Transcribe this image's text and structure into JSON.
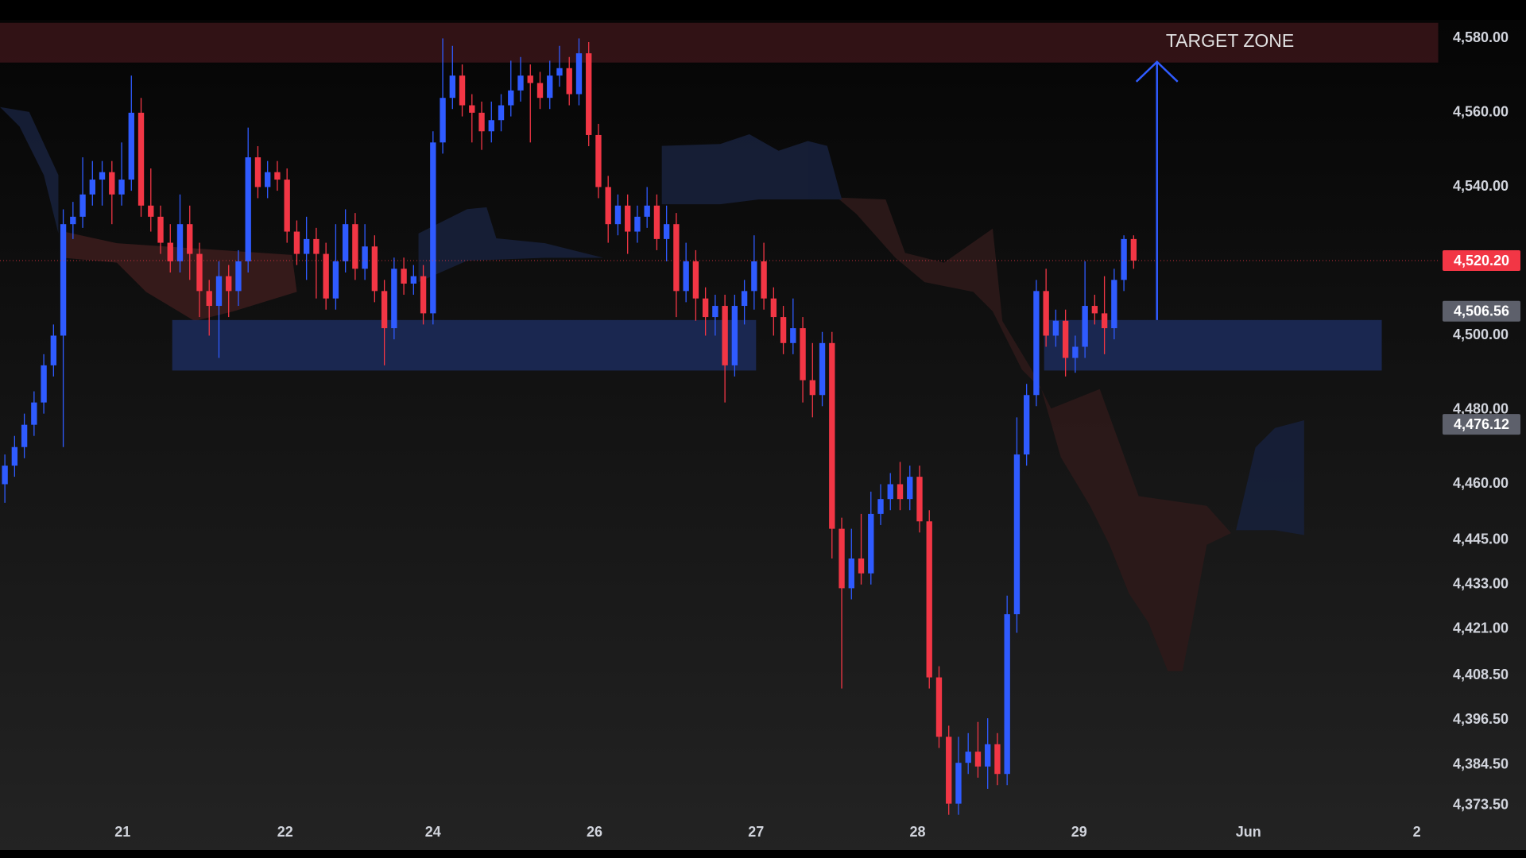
{
  "chart_data": {
    "type": "candlestick",
    "open": [
      4460,
      4465,
      4470,
      4476,
      4482,
      4492,
      4500,
      4530,
      4532,
      4538,
      4542,
      4544,
      4538,
      4542,
      4560,
      4535,
      4532,
      4525,
      4520,
      4530,
      4522,
      4512,
      4508,
      4516,
      4512,
      4520,
      4548,
      4540,
      4544,
      4542,
      4528,
      4522,
      4526,
      4522,
      4510,
      4520,
      4530,
      4518,
      4524,
      4512,
      4502,
      4518,
      4514,
      4516,
      4506,
      4552,
      4564,
      4570,
      4562,
      4560,
      4555,
      4558,
      4562,
      4566,
      4570,
      4568,
      4564,
      4570,
      4572,
      4565,
      4576,
      4554,
      4540,
      4530,
      4535,
      4528,
      4532,
      4535,
      4526,
      4530,
      4512,
      4520,
      4510,
      4505,
      4508,
      4492,
      4508,
      4512,
      4520,
      4510,
      4505,
      4498,
      4502,
      4488,
      4484,
      4498,
      4448,
      4432,
      4440,
      4436,
      4452,
      4456,
      4460,
      4456,
      4462,
      4450,
      4408,
      4392,
      4374,
      4385,
      4388,
      4384,
      4390,
      4382,
      4425,
      4468,
      4484,
      4512,
      4500,
      4504,
      4494,
      4497,
      4508,
      4506,
      4502,
      4515,
      4526
    ],
    "high": [
      4468,
      4473,
      4479,
      4485,
      4495,
      4503,
      4534,
      4536,
      4548,
      4547,
      4547,
      4547,
      4552,
      4570,
      4564,
      4545,
      4535,
      4530,
      4538,
      4535,
      4525,
      4515,
      4520,
      4519,
      4523,
      4556,
      4551,
      4547,
      4547,
      4545,
      4531,
      4532,
      4529,
      4525,
      4530,
      4534,
      4533,
      4530,
      4527,
      4515,
      4521,
      4521,
      4519,
      4519,
      4555,
      4580,
      4578,
      4573,
      4565,
      4563,
      4563,
      4565,
      4574,
      4575,
      4573,
      4571,
      4574,
      4578,
      4575,
      4580,
      4579,
      4557,
      4543,
      4538,
      4538,
      4535,
      4540,
      4538,
      4535,
      4533,
      4525,
      4523,
      4513,
      4511,
      4511,
      4511,
      4515,
      4527,
      4525,
      4513,
      4508,
      4510,
      4505,
      4498,
      4501,
      4501,
      4451,
      4448,
      4452,
      4458,
      4460,
      4463,
      4466,
      4465,
      4465,
      4453,
      4411,
      4395,
      4392,
      4393,
      4396,
      4397,
      4393,
      4430,
      4478,
      4487,
      4515,
      4518,
      4507,
      4507,
      4500,
      4520,
      4511,
      4516,
      4518,
      4527,
      4527
    ],
    "low": [
      4455,
      4462,
      4467,
      4473,
      4479,
      4489,
      4470,
      4526,
      4529,
      4535,
      4535,
      4530,
      4535,
      4539,
      4532,
      4528,
      4522,
      4517,
      4517,
      4515,
      4505,
      4500,
      4494,
      4505,
      4508,
      4517,
      4537,
      4537,
      4539,
      4525,
      4519,
      4515,
      4510,
      4507,
      4507,
      4517,
      4515,
      4515,
      4509,
      4492,
      4499,
      4511,
      4511,
      4503,
      4503,
      4549,
      4561,
      4559,
      4552,
      4550,
      4552,
      4555,
      4559,
      4563,
      4552,
      4561,
      4561,
      4567,
      4562,
      4562,
      4551,
      4537,
      4525,
      4527,
      4522,
      4525,
      4529,
      4523,
      4520,
      4505,
      4509,
      4504,
      4500,
      4500,
      4482,
      4489,
      4503,
      4507,
      4507,
      4500,
      4495,
      4495,
      4482,
      4478,
      4481,
      4440,
      4405,
      4429,
      4433,
      4433,
      4449,
      4453,
      4453,
      4453,
      4447,
      4405,
      4389,
      4371,
      4371,
      4382,
      4381,
      4378,
      4379,
      4379,
      4420,
      4465,
      4481,
      4497,
      4497,
      4489,
      4490,
      4494,
      4503,
      4495,
      4499,
      4512,
      4518
    ],
    "close": [
      4465,
      4470,
      4476,
      4482,
      4492,
      4500,
      4530,
      4532,
      4538,
      4542,
      4544,
      4538,
      4542,
      4560,
      4535,
      4532,
      4525,
      4520,
      4530,
      4522,
      4512,
      4508,
      4516,
      4512,
      4520,
      4548,
      4540,
      4544,
      4542,
      4528,
      4522,
      4526,
      4522,
      4510,
      4520,
      4530,
      4518,
      4524,
      4512,
      4502,
      4518,
      4514,
      4516,
      4506,
      4552,
      4564,
      4570,
      4562,
      4560,
      4555,
      4558,
      4562,
      4566,
      4570,
      4568,
      4564,
      4570,
      4572,
      4565,
      4576,
      4554,
      4540,
      4530,
      4535,
      4528,
      4532,
      4535,
      4526,
      4530,
      4512,
      4520,
      4510,
      4505,
      4508,
      4492,
      4508,
      4512,
      4520,
      4510,
      4505,
      4498,
      4502,
      4488,
      4484,
      4498,
      4448,
      4432,
      4440,
      4436,
      4452,
      4456,
      4460,
      4456,
      4462,
      4450,
      4408,
      4392,
      4374,
      4385,
      4388,
      4384,
      4390,
      4382,
      4425,
      4468,
      4484,
      4512,
      4500,
      4504,
      4494,
      4497,
      4508,
      4506,
      4502,
      4515,
      4526,
      4520.2
    ],
    "up_color": "#2f5bff",
    "down_color": "#f23645",
    "xlim": [
      -0.5,
      147.5
    ],
    "xticks": [
      {
        "value": 12.1,
        "label": "21"
      },
      {
        "value": 28.8,
        "label": "22"
      },
      {
        "value": 44,
        "label": "24"
      },
      {
        "value": 60.6,
        "label": "26"
      },
      {
        "value": 77.2,
        "label": "27"
      },
      {
        "value": 93.8,
        "label": "28"
      },
      {
        "value": 110.4,
        "label": "29"
      },
      {
        "value": 127.8,
        "label": "Jun"
      },
      {
        "value": 145.1,
        "label": "2"
      }
    ],
    "ylim": [
      4369,
      4585
    ],
    "yticks": [
      {
        "value": 4580,
        "label": "4,580.00"
      },
      {
        "value": 4560,
        "label": "4,560.00"
      },
      {
        "value": 4540,
        "label": "4,540.00"
      },
      {
        "value": 4500,
        "label": "4,500.00"
      },
      {
        "value": 4480,
        "label": "4,480.00"
      },
      {
        "value": 4460,
        "label": "4,460.00"
      },
      {
        "value": 4445,
        "label": "4,445.00"
      },
      {
        "value": 4433,
        "label": "4,433.00"
      },
      {
        "value": 4421,
        "label": "4,421.00"
      },
      {
        "value": 4408.5,
        "label": "4,408.50"
      },
      {
        "value": 4396.5,
        "label": "4,396.50"
      },
      {
        "value": 4384.5,
        "label": "4,384.50"
      },
      {
        "value": 4373.5,
        "label": "4,373.50"
      }
    ],
    "grid": false,
    "price_labels": [
      {
        "value": 4520.2,
        "label": "4,520.20",
        "color": "#f23645"
      },
      {
        "value": 4506.56,
        "label": "4,506.56",
        "color": "#5d606b"
      },
      {
        "value": 4476.12,
        "label": "4,476.12",
        "color": "#5d606b"
      }
    ],
    "zones": [
      {
        "x": [
          -0.5,
          147.3
        ],
        "y": [
          4573.5,
          4584.2
        ],
        "color": "#3a1519"
      },
      {
        "x": [
          17.2,
          77.2
        ],
        "y": [
          4490.6,
          4504.2
        ],
        "color": "#1c2b5c"
      },
      {
        "x": [
          106.8,
          141.5
        ],
        "y": [
          4490.6,
          4504.2
        ],
        "color": "#1c2b5c"
      }
    ],
    "annotation": {
      "text": "TARGET ZONE",
      "x": 125.9,
      "y": 4579
    },
    "arrow": {
      "x": 118.4,
      "y": [
        4504.2,
        4573.7
      ],
      "color": "#2f5bff"
    }
  }
}
